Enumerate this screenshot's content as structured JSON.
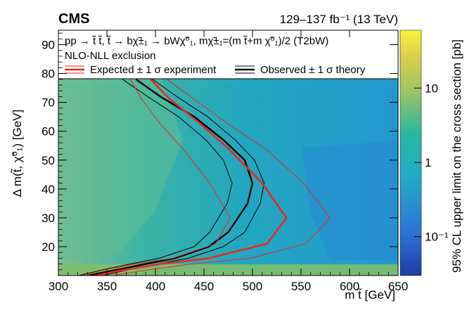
{
  "header": {
    "experiment": "CMS",
    "luminosity": "129–137 fb⁻¹ (13 TeV)"
  },
  "legend": {
    "process": "pp → t̃ t̃, t̃ → bχ̃±₁ → bWχ̃⁰₁, mχ̃±₁=(m t̃+m χ̃⁰₁)/2 (T2bW)",
    "exclusion": "NLO-NLL exclusion",
    "expected": "Expected ± 1 σ experiment",
    "observed": "Observed ± 1 σ theory"
  },
  "colors": {
    "expected": "#e8281e",
    "observed": "#000000",
    "map_low": "#2f6fcf",
    "map_mid": "#2bb0b8",
    "map_high": "#f5e83a"
  },
  "chart_data": {
    "type": "heatmap",
    "title": "",
    "xlabel": "m t̃ [GeV]",
    "ylabel": "Δ m(t̃, χ̃⁰₁) [GeV]",
    "zlabel": "95% CL upper limit on the cross section [pb]",
    "xlim": [
      300,
      650
    ],
    "ylim": [
      10,
      95
    ],
    "zlim_log": [
      0.03,
      60
    ],
    "x_ticks": [
      300,
      350,
      400,
      450,
      500,
      550,
      600,
      650
    ],
    "y_ticks": [
      20,
      30,
      40,
      50,
      60,
      70,
      80,
      90
    ],
    "z_ticks": [
      {
        "value": 0.1,
        "label": "10⁻¹"
      },
      {
        "value": 1,
        "label": "1"
      },
      {
        "value": 10,
        "label": "10"
      }
    ],
    "heatmap_cells": [
      {
        "x_range": [
          300,
          650
        ],
        "y_range": [
          10,
          14
        ],
        "limit_pb": 6
      },
      {
        "x_range": [
          300,
          420
        ],
        "y_range": [
          14,
          78
        ],
        "limit_pb": 2.5
      },
      {
        "x_range": [
          420,
          520
        ],
        "y_range": [
          14,
          78
        ],
        "limit_pb": 1.2
      },
      {
        "x_range": [
          520,
          650
        ],
        "y_range": [
          14,
          78
        ],
        "limit_pb": 0.5
      }
    ],
    "series": [
      {
        "name": "Observed",
        "style": "black-thick",
        "x": [
          331,
          360,
          390,
          420,
          455,
          475,
          495,
          500,
          492,
          470,
          440,
          405,
          380
        ],
        "y": [
          10,
          12,
          14,
          16,
          20,
          25,
          35,
          42,
          50,
          57,
          65,
          72,
          78
        ]
      },
      {
        "name": "Observed +1 sigma theory",
        "style": "black-thin",
        "x": [
          346,
          372,
          402,
          434,
          470,
          492,
          508,
          512,
          502,
          482,
          454,
          422,
          397
        ],
        "y": [
          10,
          12,
          14,
          16,
          20,
          25,
          35,
          42,
          50,
          57,
          65,
          72,
          78
        ]
      },
      {
        "name": "Observed -1 sigma theory",
        "style": "black-thin",
        "x": [
          321,
          346,
          374,
          404,
          440,
          456,
          474,
          479,
          470,
          452,
          424,
          392,
          366
        ],
        "y": [
          10,
          12,
          14,
          16,
          20,
          25,
          35,
          42,
          50,
          57,
          65,
          72,
          78
        ]
      },
      {
        "name": "Expected",
        "style": "red-thick",
        "x": [
          338,
          368,
          405,
          455,
          515,
          535,
          510,
          475,
          445,
          415,
          395
        ],
        "y": [
          10,
          12,
          14,
          16,
          21,
          30,
          42,
          54,
          63,
          71,
          78
        ]
      },
      {
        "name": "Expected +1 sigma experiment",
        "style": "red-thin",
        "x": [
          356,
          393,
          438,
          498,
          555,
          580,
          553,
          513,
          473,
          440,
          412
        ],
        "y": [
          10,
          12,
          14,
          16,
          21,
          30,
          42,
          54,
          63,
          71,
          78
        ]
      },
      {
        "name": "Expected -1 sigma experiment",
        "style": "red-thin",
        "x": [
          324,
          348,
          378,
          418,
          462,
          477,
          456,
          428,
          404,
          386,
          374
        ],
        "y": [
          10,
          12,
          14,
          16,
          21,
          30,
          42,
          54,
          63,
          71,
          78
        ]
      }
    ]
  }
}
